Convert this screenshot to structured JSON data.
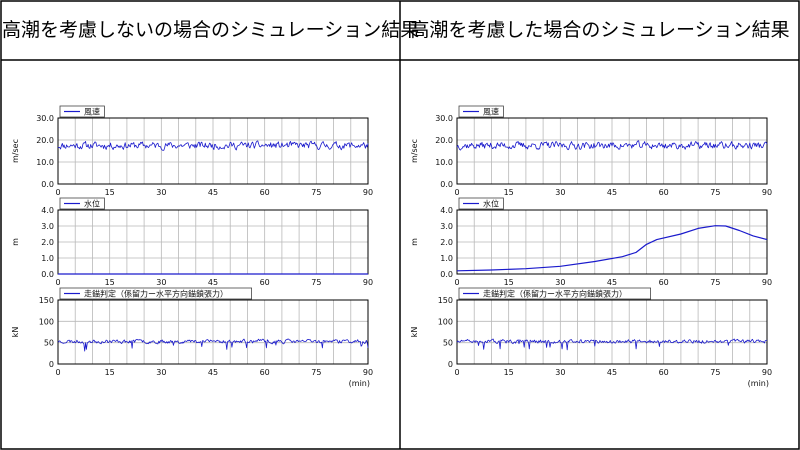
{
  "panels": [
    {
      "title": "高潮を考慮しないの場合のシミュレーション結果",
      "charts": [
        {
          "legend": "風速",
          "ylabel": "m/sec",
          "ylim": [
            0,
            30
          ],
          "yticks": [
            "0.0",
            "10.0",
            "20.0",
            "30.0"
          ],
          "xticks": [
            "0",
            "15",
            "30",
            "45",
            "60",
            "75",
            "90"
          ],
          "xlim": [
            0,
            90
          ],
          "series": {
            "type": "noise",
            "mean": 17.5,
            "amp": 2.6,
            "seed": 11
          }
        },
        {
          "legend": "水位",
          "ylabel": "m",
          "ylim": [
            0,
            4
          ],
          "yticks": [
            "0.0",
            "1.0",
            "2.0",
            "3.0",
            "4.0"
          ],
          "xticks": [
            "0",
            "15",
            "30",
            "45",
            "60",
            "75",
            "90"
          ],
          "xlim": [
            0,
            90
          ],
          "series": {
            "type": "points",
            "x": [
              0,
              90
            ],
            "y": [
              0,
              0
            ]
          }
        },
        {
          "legend": "走錨判定（係留力ー水平方向錨鎖張力）",
          "ylabel": "kN",
          "ylim": [
            0,
            150
          ],
          "yticks": [
            "0",
            "50",
            "100",
            "150"
          ],
          "xticks": [
            "0",
            "15",
            "30",
            "45",
            "60",
            "75",
            "90"
          ],
          "xlim": [
            0,
            90
          ],
          "xunit": "(min)",
          "series": {
            "type": "noise",
            "mean": 53,
            "amp": 7,
            "seed": 23,
            "spikes": true
          }
        }
      ]
    },
    {
      "title": "高潮を考慮した場合のシミュレーション結果",
      "charts": [
        {
          "legend": "風速",
          "ylabel": "m/sec",
          "ylim": [
            0,
            30
          ],
          "yticks": [
            "0.0",
            "10.0",
            "20.0",
            "30.0"
          ],
          "xticks": [
            "0",
            "15",
            "30",
            "45",
            "60",
            "75",
            "90"
          ],
          "xlim": [
            0,
            90
          ],
          "series": {
            "type": "noise",
            "mean": 17.5,
            "amp": 2.6,
            "seed": 37
          }
        },
        {
          "legend": "水位",
          "ylabel": "m",
          "ylim": [
            0,
            4
          ],
          "yticks": [
            "0.0",
            "1.0",
            "2.0",
            "3.0",
            "4.0"
          ],
          "xticks": [
            "0",
            "15",
            "30",
            "45",
            "60",
            "75",
            "90"
          ],
          "xlim": [
            0,
            90
          ],
          "series": {
            "type": "points",
            "x": [
              0,
              10,
              20,
              30,
              40,
              48,
              52,
              55,
              58,
              65,
              70,
              75,
              78,
              82,
              86,
              90
            ],
            "y": [
              0.2,
              0.25,
              0.33,
              0.48,
              0.78,
              1.08,
              1.35,
              1.85,
              2.15,
              2.5,
              2.85,
              3.02,
              3.0,
              2.72,
              2.38,
              2.15
            ]
          }
        },
        {
          "legend": "走錨判定（係留力ー水平方向錨鎖張力）",
          "ylabel": "kN",
          "ylim": [
            0,
            150
          ],
          "yticks": [
            "0",
            "50",
            "100",
            "150"
          ],
          "xticks": [
            "0",
            "15",
            "30",
            "45",
            "60",
            "75",
            "90"
          ],
          "xlim": [
            0,
            90
          ],
          "xunit": "(min)",
          "series": {
            "type": "noise",
            "mean": 53,
            "amp": 7,
            "seed": 51,
            "spikes": true
          }
        }
      ]
    }
  ],
  "colors": {
    "line": "#1a1acc",
    "grid": "#b8b8b8",
    "axis": "#000000",
    "text": "#111111",
    "border": "#000000"
  }
}
